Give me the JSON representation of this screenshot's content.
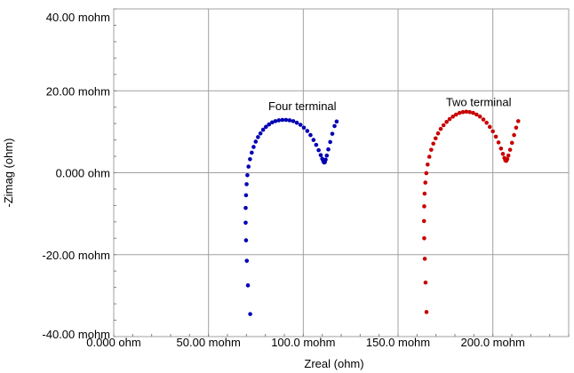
{
  "chart_data": {
    "type": "scatter",
    "title": "",
    "xlabel": "Zreal (ohm)",
    "ylabel": "-Zimag (ohm)",
    "xlim": [
      0,
      240
    ],
    "ylim": [
      -40,
      40
    ],
    "grid": true,
    "x_ticks": [
      {
        "value": 0,
        "label": "0.000 ohm"
      },
      {
        "value": 50,
        "label": "50.00 mohm"
      },
      {
        "value": 100,
        "label": "100.0 mohm"
      },
      {
        "value": 150,
        "label": "150.0 mohm"
      },
      {
        "value": 200,
        "label": "200.0 mohm"
      }
    ],
    "y_ticks": [
      {
        "value": 40,
        "label": "40.00 mohm"
      },
      {
        "value": 20,
        "label": "20.00 mohm"
      },
      {
        "value": 0,
        "label": "0.000 ohm"
      },
      {
        "value": -20,
        "label": "-20.00 mohm"
      },
      {
        "value": -40,
        "label": "-40.00 mohm"
      }
    ],
    "series": [
      {
        "color": "#0000b4",
        "points": [
          [
            72.0,
            -34.5
          ],
          [
            70.8,
            -27.5
          ],
          [
            70.2,
            -21.5
          ],
          [
            69.8,
            -16.5
          ],
          [
            69.6,
            -12.2
          ],
          [
            69.6,
            -8.6
          ],
          [
            69.8,
            -5.5
          ],
          [
            70.1,
            -2.8
          ],
          [
            70.5,
            -0.6
          ],
          [
            71.1,
            1.5
          ],
          [
            71.9,
            3.3
          ],
          [
            72.8,
            4.9
          ],
          [
            73.8,
            6.3
          ],
          [
            74.9,
            7.6
          ],
          [
            76.1,
            8.7
          ],
          [
            77.4,
            9.6
          ],
          [
            78.8,
            10.5
          ],
          [
            80.3,
            11.2
          ],
          [
            81.9,
            11.8
          ],
          [
            83.6,
            12.3
          ],
          [
            85.3,
            12.6
          ],
          [
            87.1,
            12.8
          ],
          [
            89.0,
            12.9
          ],
          [
            90.9,
            12.9
          ],
          [
            92.8,
            12.8
          ],
          [
            94.7,
            12.6
          ],
          [
            96.6,
            12.2
          ],
          [
            98.5,
            11.7
          ],
          [
            100.3,
            11.0
          ],
          [
            102.1,
            10.2
          ],
          [
            103.8,
            9.2
          ],
          [
            105.4,
            8.0
          ],
          [
            106.8,
            6.8
          ],
          [
            108.1,
            5.5
          ],
          [
            109.2,
            4.3
          ],
          [
            110.0,
            3.4
          ],
          [
            110.6,
            2.8
          ],
          [
            111.0,
            2.5
          ],
          [
            111.4,
            2.6
          ],
          [
            111.8,
            3.2
          ],
          [
            112.4,
            4.2
          ],
          [
            113.2,
            5.7
          ],
          [
            114.2,
            7.5
          ],
          [
            115.3,
            9.5
          ],
          [
            116.5,
            11.4
          ],
          [
            117.6,
            12.5
          ]
        ]
      },
      {
        "color": "#c80000",
        "points": [
          [
            165.0,
            -34.0
          ],
          [
            164.5,
            -26.8
          ],
          [
            164.1,
            -21.0
          ],
          [
            163.8,
            -16.0
          ],
          [
            163.7,
            -11.8
          ],
          [
            163.8,
            -8.2
          ],
          [
            164.0,
            -5.1
          ],
          [
            164.4,
            -2.4
          ],
          [
            164.9,
            -0.1
          ],
          [
            165.6,
            2.0
          ],
          [
            166.5,
            3.9
          ],
          [
            167.5,
            5.6
          ],
          [
            168.6,
            7.1
          ],
          [
            169.8,
            8.4
          ],
          [
            171.1,
            9.6
          ],
          [
            172.5,
            10.7
          ],
          [
            174.0,
            11.6
          ],
          [
            175.6,
            12.4
          ],
          [
            177.2,
            13.1
          ],
          [
            178.9,
            13.7
          ],
          [
            180.6,
            14.2
          ],
          [
            182.4,
            14.6
          ],
          [
            184.2,
            14.8
          ],
          [
            186.0,
            14.9
          ],
          [
            187.8,
            14.8
          ],
          [
            189.6,
            14.6
          ],
          [
            191.4,
            14.2
          ],
          [
            193.2,
            13.7
          ],
          [
            195.0,
            13.0
          ],
          [
            196.7,
            12.2
          ],
          [
            198.4,
            11.2
          ],
          [
            200.0,
            10.1
          ],
          [
            201.6,
            8.8
          ],
          [
            203.0,
            7.4
          ],
          [
            204.3,
            5.9
          ],
          [
            205.3,
            4.6
          ],
          [
            206.1,
            3.6
          ],
          [
            206.6,
            3.0
          ],
          [
            207.1,
            2.9
          ],
          [
            207.6,
            3.3
          ],
          [
            208.2,
            4.2
          ],
          [
            209.1,
            5.6
          ],
          [
            210.1,
            7.3
          ],
          [
            211.2,
            9.2
          ],
          [
            212.3,
            11.0
          ],
          [
            213.4,
            12.6
          ]
        ]
      }
    ],
    "annotations": [
      {
        "text": "Four terminal",
        "x": 99.5,
        "y": 15.3
      },
      {
        "text": "Two terminal",
        "x": 192.5,
        "y": 16.3
      }
    ]
  }
}
